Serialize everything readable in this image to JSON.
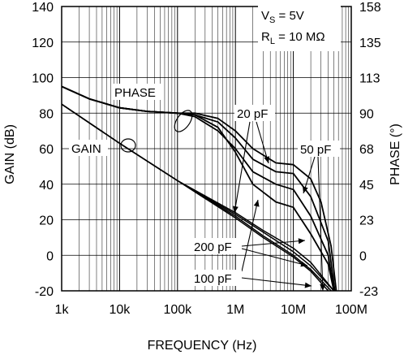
{
  "chart_data": {
    "type": "line",
    "xscale": "log",
    "xlim": [
      1000,
      100000000
    ],
    "ylim_left": [
      -20,
      140
    ],
    "ylim_right": [
      -23,
      158
    ],
    "grid": true,
    "xlabel": "FREQUENCY (Hz)",
    "ylabel_left": "GAIN (dB)",
    "ylabel_right": "PHASE (°)",
    "x_ticks": [
      {
        "v": 1000,
        "label": "1k"
      },
      {
        "v": 10000,
        "label": "10k"
      },
      {
        "v": 100000,
        "label": "100k"
      },
      {
        "v": 1000000,
        "label": "1M"
      },
      {
        "v": 10000000,
        "label": "10M"
      },
      {
        "v": 100000000,
        "label": "100M"
      }
    ],
    "y_left_ticks": [
      {
        "v": -20,
        "label": "-20"
      },
      {
        "v": 0,
        "label": "0"
      },
      {
        "v": 20,
        "label": "20"
      },
      {
        "v": 40,
        "label": "40"
      },
      {
        "v": 60,
        "label": "60"
      },
      {
        "v": 80,
        "label": "80"
      },
      {
        "v": 100,
        "label": "100"
      },
      {
        "v": 120,
        "label": "120"
      },
      {
        "v": 140,
        "label": "140"
      }
    ],
    "y_right_labels": [
      "-23",
      "0",
      "23",
      "45",
      "68",
      "90",
      "113",
      "135",
      "158"
    ],
    "conditions": {
      "vs_main": "V",
      "vs_sub": "S",
      "vs_value": " = 5V",
      "rl_main": "R",
      "rl_sub": "L",
      "rl_value": " = 10 MΩ"
    },
    "annotations": {
      "phase": "PHASE",
      "gain": "GAIN",
      "c20": "20 pF",
      "c50": "50 pF",
      "c200": "200 pF",
      "c100": "100 pF"
    },
    "series": [
      {
        "kind": "gain",
        "points": [
          [
            1000,
            85
          ],
          [
            10000,
            63
          ],
          [
            100000,
            42
          ],
          [
            1000000,
            21
          ],
          [
            3000000,
            10
          ],
          [
            10000000,
            -1
          ],
          [
            20000000,
            -9
          ],
          [
            40000000,
            -20
          ]
        ]
      },
      {
        "kind": "gain",
        "points": [
          [
            1000,
            85
          ],
          [
            10000,
            63
          ],
          [
            100000,
            42
          ],
          [
            1000000,
            22
          ],
          [
            3000000,
            11
          ],
          [
            10000000,
            0
          ],
          [
            20000000,
            -8
          ],
          [
            45000000,
            -20
          ]
        ]
      },
      {
        "kind": "gain",
        "points": [
          [
            1000,
            85
          ],
          [
            10000,
            63
          ],
          [
            100000,
            42
          ],
          [
            1000000,
            23
          ],
          [
            3000000,
            13
          ],
          [
            10000000,
            2
          ],
          [
            20000000,
            -6
          ],
          [
            50000000,
            -20
          ]
        ]
      },
      {
        "kind": "gain",
        "points": [
          [
            1000,
            85
          ],
          [
            10000,
            63
          ],
          [
            100000,
            42
          ],
          [
            1000000,
            24
          ],
          [
            3000000,
            14
          ],
          [
            10000000,
            4
          ],
          [
            20000000,
            -4
          ],
          [
            50000000,
            -20
          ]
        ]
      },
      {
        "kind": "phase",
        "points": [
          [
            1000,
            95
          ],
          [
            3000,
            88
          ],
          [
            10000,
            83
          ],
          [
            30000,
            81
          ],
          [
            100000,
            80
          ],
          [
            200000,
            79
          ],
          [
            500000,
            72
          ],
          [
            1000000,
            58
          ],
          [
            2000000,
            40
          ],
          [
            5000000,
            30
          ],
          [
            10000000,
            27
          ],
          [
            20000000,
            12
          ],
          [
            40000000,
            -5
          ],
          [
            50000000,
            -20
          ]
        ]
      },
      {
        "kind": "phase",
        "points": [
          [
            1000,
            95
          ],
          [
            3000,
            88
          ],
          [
            10000,
            83
          ],
          [
            30000,
            81
          ],
          [
            100000,
            80
          ],
          [
            200000,
            78
          ],
          [
            500000,
            70
          ],
          [
            1000000,
            60
          ],
          [
            2000000,
            47
          ],
          [
            5000000,
            40
          ],
          [
            10000000,
            37
          ],
          [
            20000000,
            22
          ],
          [
            40000000,
            0
          ],
          [
            50000000,
            -20
          ]
        ]
      },
      {
        "kind": "phase",
        "points": [
          [
            1000,
            95
          ],
          [
            3000,
            88
          ],
          [
            10000,
            83
          ],
          [
            30000,
            81
          ],
          [
            100000,
            80
          ],
          [
            200000,
            79
          ],
          [
            500000,
            75
          ],
          [
            1000000,
            66
          ],
          [
            2000000,
            54
          ],
          [
            5000000,
            47
          ],
          [
            10000000,
            46
          ],
          [
            20000000,
            33
          ],
          [
            40000000,
            8
          ],
          [
            52000000,
            -20
          ]
        ]
      },
      {
        "kind": "phase",
        "points": [
          [
            1000,
            95
          ],
          [
            3000,
            88
          ],
          [
            10000,
            83
          ],
          [
            30000,
            81
          ],
          [
            100000,
            80
          ],
          [
            200000,
            80
          ],
          [
            500000,
            77
          ],
          [
            1000000,
            70
          ],
          [
            2000000,
            60
          ],
          [
            5000000,
            52
          ],
          [
            10000000,
            51
          ],
          [
            20000000,
            43
          ],
          [
            30000000,
            30
          ],
          [
            45000000,
            5
          ],
          [
            55000000,
            -20
          ]
        ]
      }
    ]
  }
}
